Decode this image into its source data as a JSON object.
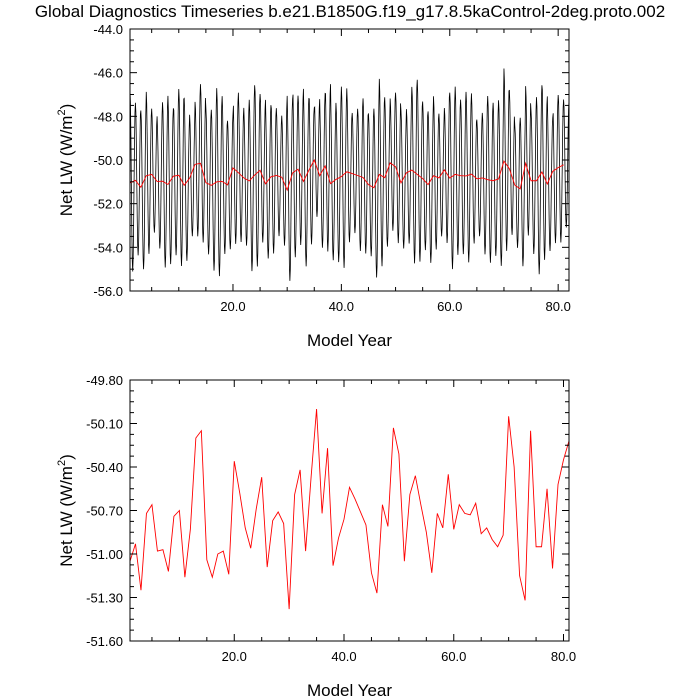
{
  "title": "Global Diagnostics Timeseries b.e21.B1850G.f19_g17.8.5kaControl-2deg.proto.002",
  "colors": {
    "monthly": "#000000",
    "annual": "#ff0000",
    "frame": "#000000"
  },
  "chart_data": [
    {
      "type": "line",
      "xlabel": "Model Year",
      "ylabel": "Net LW (W/m",
      "ylabel_sup": "2",
      "ylabel_close": ")",
      "xlim": [
        1,
        82
      ],
      "ylim": [
        -56.0,
        -44.0
      ],
      "xticks": [
        "20.0",
        "40.0",
        "60.0",
        "80.0"
      ],
      "xtick_values": [
        20,
        40,
        60,
        80
      ],
      "yticks": [
        "-56.0",
        "-54.0",
        "-52.0",
        "-50.0",
        "-48.0",
        "-46.0",
        "-44.0"
      ],
      "ytick_values": [
        -56,
        -54,
        -52,
        -50,
        -48,
        -46,
        -44
      ],
      "monthly_cycle": {
        "amplitude": 3.5,
        "period_years": 1.0
      },
      "series": [
        {
          "x": [
            1,
            2,
            3,
            4,
            5,
            6,
            7,
            8,
            9,
            10,
            11,
            12,
            13,
            14,
            15,
            16,
            17,
            18,
            19,
            20,
            21,
            22,
            23,
            24,
            25,
            26,
            27,
            28,
            29,
            30,
            31,
            32,
            33,
            34,
            35,
            36,
            37,
            38,
            39,
            40,
            41,
            42,
            43,
            44,
            45,
            46,
            47,
            48,
            49,
            50,
            51,
            52,
            53,
            54,
            55,
            56,
            57,
            58,
            59,
            60,
            61,
            62,
            63,
            64,
            65,
            66,
            67,
            68,
            69,
            70,
            71,
            72,
            73,
            74,
            75,
            76,
            77,
            78,
            79,
            80,
            81
          ],
          "values": [
            -51.05,
            -50.93,
            -51.25,
            -50.72,
            -50.66,
            -50.98,
            -50.97,
            -51.12,
            -50.74,
            -50.7,
            -51.16,
            -50.83,
            -50.2,
            -50.15,
            -51.04,
            -51.16,
            -51.0,
            -50.98,
            -51.14,
            -50.36,
            -50.58,
            -50.82,
            -50.96,
            -50.69,
            -50.47,
            -51.09,
            -50.77,
            -50.71,
            -50.79,
            -51.38,
            -50.59,
            -50.42,
            -50.98,
            -50.47,
            -50.0,
            -50.72,
            -50.27,
            -51.08,
            -50.89,
            -50.76,
            -50.54,
            -50.62,
            -50.71,
            -50.8,
            -51.13,
            -51.27,
            -50.66,
            -50.81,
            -50.13,
            -50.31,
            -51.05,
            -50.59,
            -50.46,
            -50.66,
            -50.85,
            -51.13,
            -50.72,
            -50.82,
            -50.45,
            -50.83,
            -50.66,
            -50.72,
            -50.73,
            -50.65,
            -50.86,
            -50.82,
            -50.9,
            -50.95,
            -50.87,
            -50.05,
            -50.4,
            -51.15,
            -51.32,
            -50.15,
            -50.95,
            -50.95,
            -50.55,
            -51.1,
            -50.52,
            -50.35,
            -50.22
          ]
        }
      ]
    },
    {
      "type": "line",
      "xlabel": "Model Year",
      "ylabel": "Net LW (W/m",
      "ylabel_sup": "2",
      "ylabel_close": ")",
      "xlim": [
        1,
        81
      ],
      "ylim": [
        -51.6,
        -49.8
      ],
      "xticks": [
        "20.0",
        "40.0",
        "60.0",
        "80.0"
      ],
      "xtick_values": [
        20,
        40,
        60,
        80
      ],
      "yticks": [
        "-51.60",
        "-51.30",
        "-51.00",
        "-50.70",
        "-50.40",
        "-50.10",
        "-49.80"
      ],
      "ytick_values": [
        -51.6,
        -51.3,
        -51.0,
        -50.7,
        -50.4,
        -50.1,
        -49.8
      ],
      "series": [
        {
          "x": [
            1,
            2,
            3,
            4,
            5,
            6,
            7,
            8,
            9,
            10,
            11,
            12,
            13,
            14,
            15,
            16,
            17,
            18,
            19,
            20,
            21,
            22,
            23,
            24,
            25,
            26,
            27,
            28,
            29,
            30,
            31,
            32,
            33,
            34,
            35,
            36,
            37,
            38,
            39,
            40,
            41,
            42,
            43,
            44,
            45,
            46,
            47,
            48,
            49,
            50,
            51,
            52,
            53,
            54,
            55,
            56,
            57,
            58,
            59,
            60,
            61,
            62,
            63,
            64,
            65,
            66,
            67,
            68,
            69,
            70,
            71,
            72,
            73,
            74,
            75,
            76,
            77,
            78,
            79,
            80,
            81
          ],
          "values": [
            -51.05,
            -50.93,
            -51.25,
            -50.72,
            -50.66,
            -50.98,
            -50.97,
            -51.12,
            -50.74,
            -50.7,
            -51.16,
            -50.83,
            -50.2,
            -50.15,
            -51.04,
            -51.16,
            -51.0,
            -50.98,
            -51.14,
            -50.36,
            -50.58,
            -50.82,
            -50.96,
            -50.69,
            -50.47,
            -51.09,
            -50.77,
            -50.71,
            -50.79,
            -51.38,
            -50.59,
            -50.42,
            -50.98,
            -50.47,
            -50.0,
            -50.72,
            -50.27,
            -51.08,
            -50.89,
            -50.76,
            -50.54,
            -50.62,
            -50.71,
            -50.8,
            -51.13,
            -51.27,
            -50.66,
            -50.81,
            -50.13,
            -50.31,
            -51.05,
            -50.59,
            -50.46,
            -50.66,
            -50.85,
            -51.13,
            -50.72,
            -50.82,
            -50.45,
            -50.83,
            -50.66,
            -50.72,
            -50.73,
            -50.65,
            -50.86,
            -50.82,
            -50.9,
            -50.95,
            -50.87,
            -50.05,
            -50.4,
            -51.15,
            -51.32,
            -50.15,
            -50.95,
            -50.95,
            -50.55,
            -51.1,
            -50.52,
            -50.35,
            -50.22
          ]
        }
      ]
    }
  ]
}
